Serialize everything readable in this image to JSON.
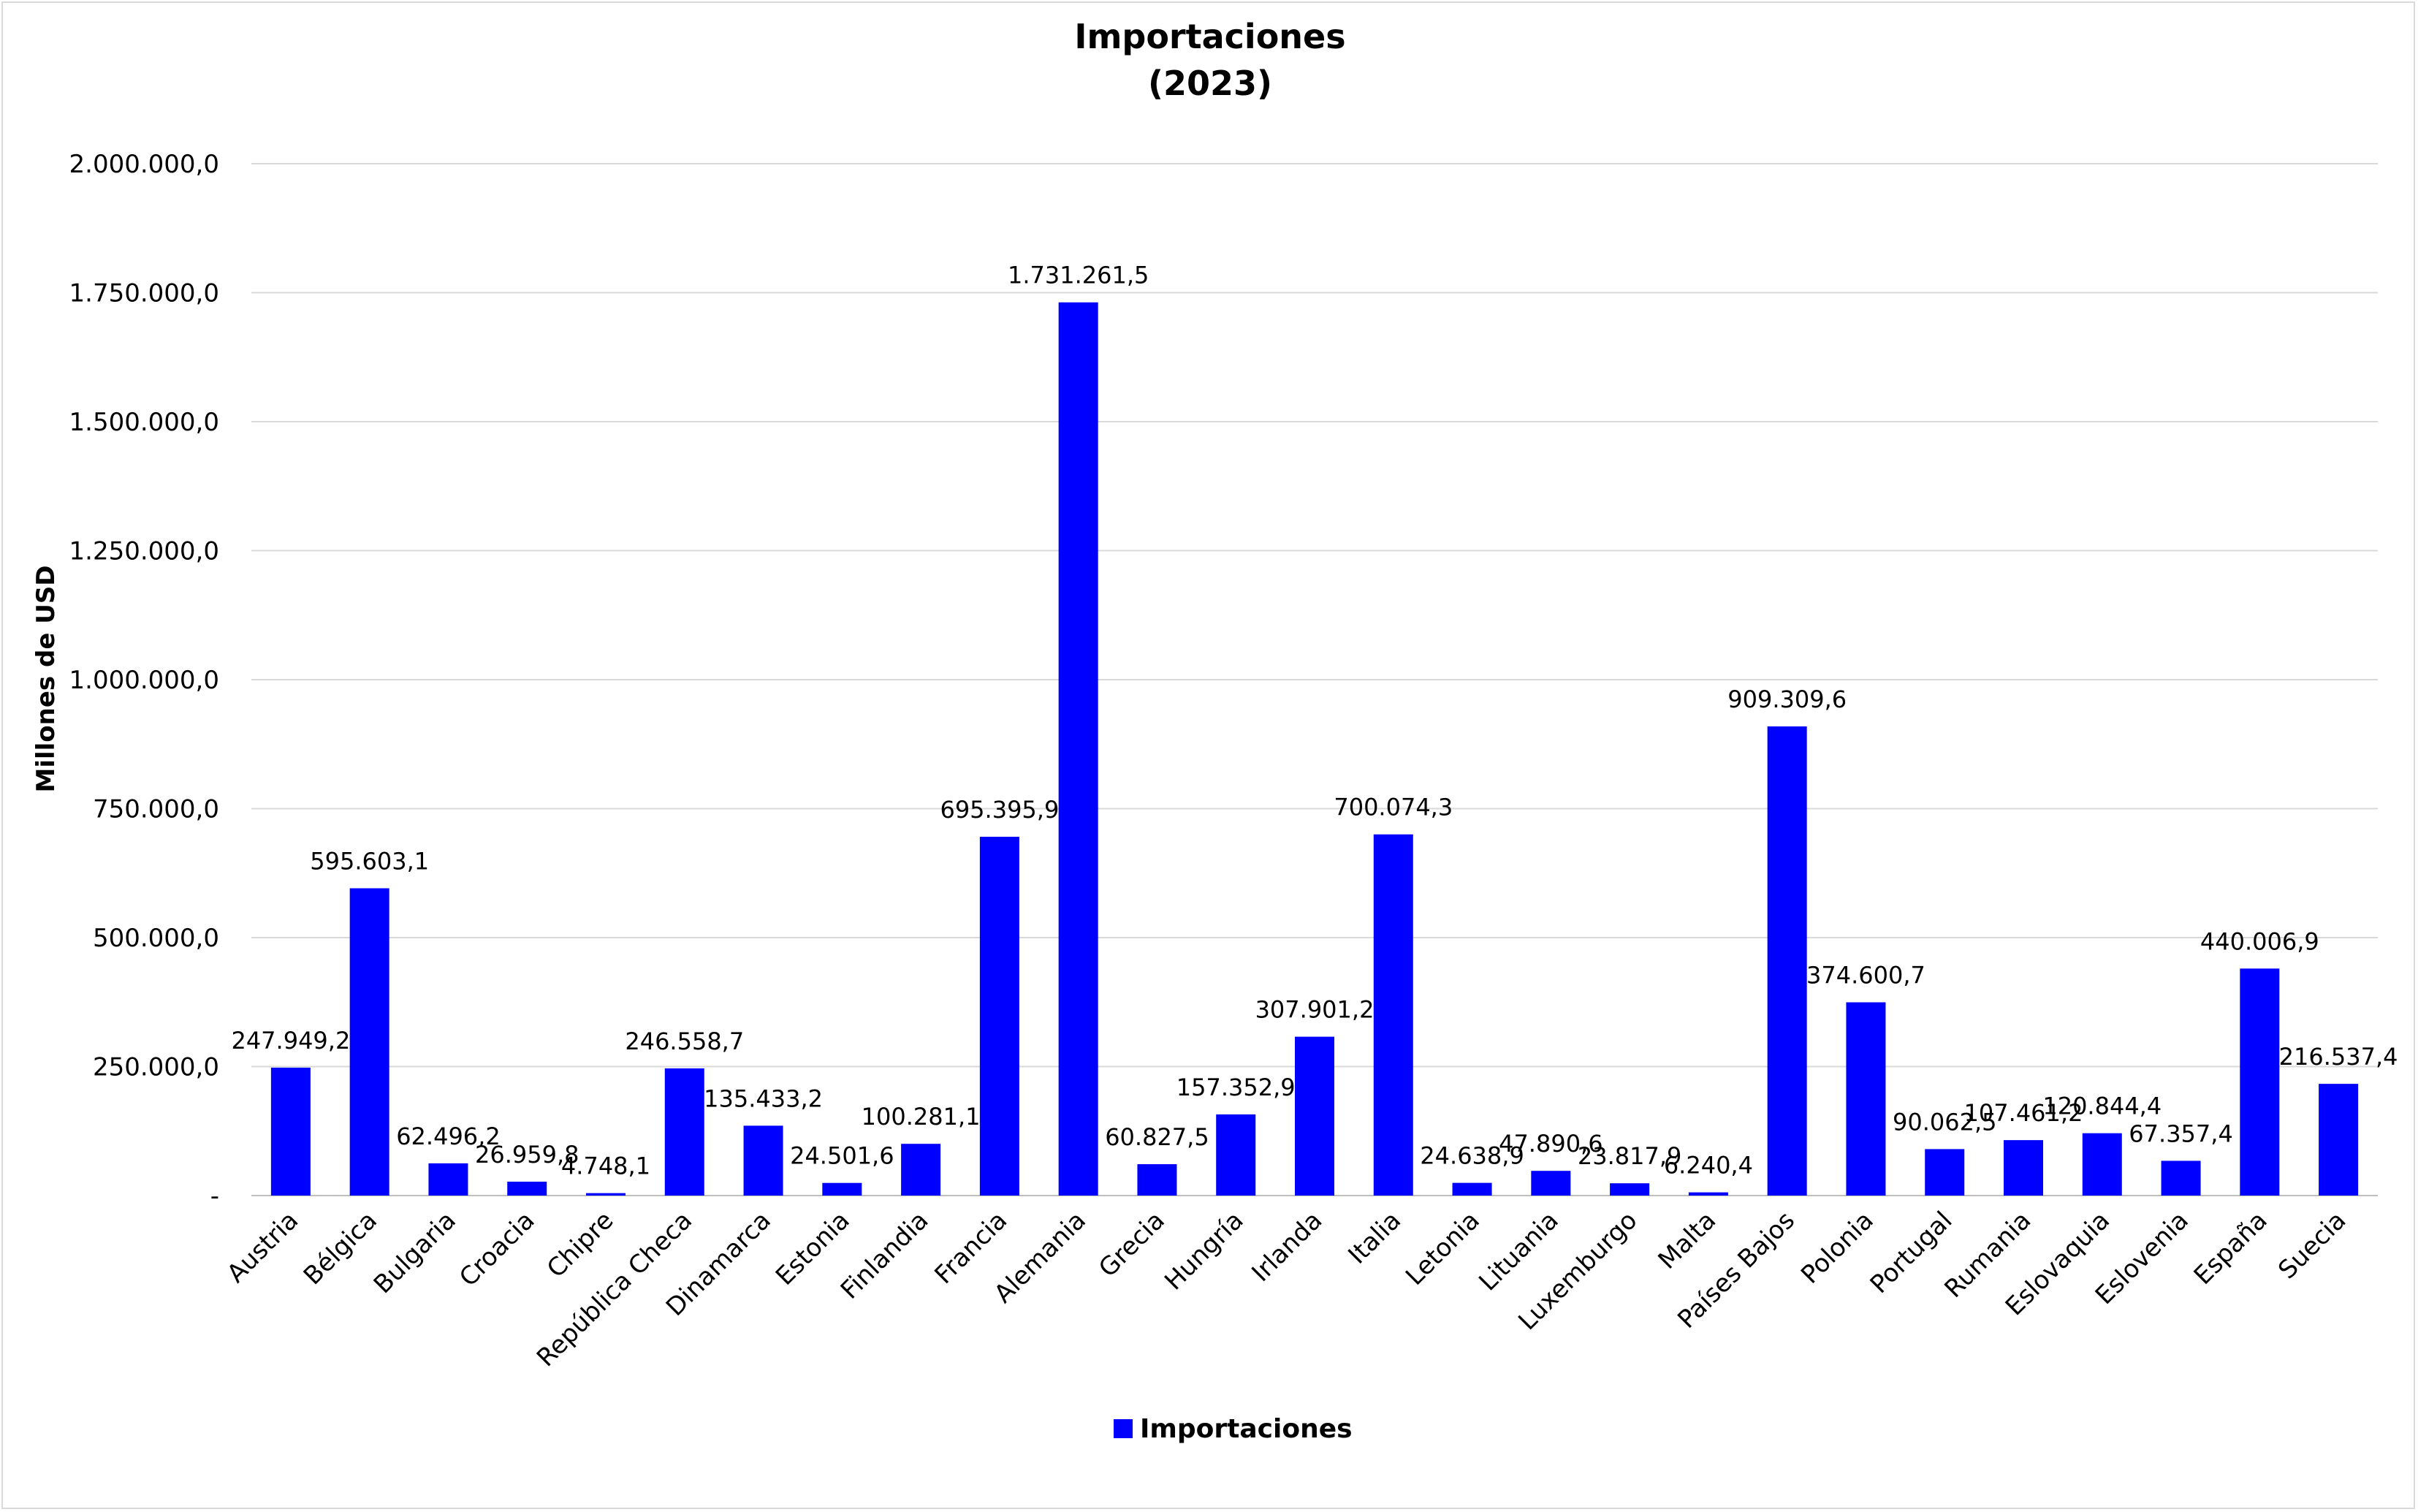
{
  "chart_data": {
    "type": "bar",
    "title": "Importaciones",
    "subtitle": "(2023)",
    "ylabel": "Millones de USD",
    "xlabel": "",
    "ylim": [
      0,
      2000000
    ],
    "yticks": [
      0,
      250000,
      500000,
      750000,
      1000000,
      1250000,
      1500000,
      1750000,
      2000000
    ],
    "ytick_labels": [
      "-",
      "250.000,0",
      "500.000,0",
      "750.000,0",
      "1.000.000,0",
      "1.250.000,0",
      "1.500.000,0",
      "1.750.000,0",
      "2.000.000,0"
    ],
    "grid": true,
    "legend_position": "bottom",
    "bar_color": "#0000ff",
    "categories": [
      "Austria",
      "Bélgica",
      "Bulgaria",
      "Croacia",
      "Chipre",
      "República Checa",
      "Dinamarca",
      "Estonia",
      "Finlandia",
      "Francia",
      "Alemania",
      "Grecia",
      "Hungría",
      "Irlanda",
      "Italia",
      "Letonia",
      "Lituania",
      "Luxemburgo",
      "Malta",
      "Países Bajos",
      "Polonia",
      "Portugal",
      "Rumania",
      "Eslovaquia",
      "Eslovenia",
      "España",
      "Suecia"
    ],
    "series": [
      {
        "name": "Importaciones",
        "values": [
          247949.2,
          595603.1,
          62496.2,
          26959.8,
          4748.1,
          246558.7,
          135433.2,
          24501.6,
          100281.1,
          695395.9,
          1731261.5,
          60827.5,
          157352.9,
          307901.2,
          700074.3,
          24638.9,
          47890.6,
          23817.9,
          6240.4,
          909309.6,
          374600.7,
          90062.5,
          107461.2,
          120844.4,
          67357.4,
          440006.9,
          216537.4
        ],
        "labels": [
          "247.949,2",
          "595.603,1",
          "62.496,2",
          "26.959,8",
          "4.748,1",
          "246.558,7",
          "135.433,2",
          "24.501,6",
          "100.281,1",
          "695.395,9",
          "1.731.261,5",
          "60.827,5",
          "157.352,9",
          "307.901,2",
          "700.074,3",
          "24.638,9",
          "47.890,6",
          "23.817,9",
          "6.240,4",
          "909.309,6",
          "374.600,7",
          "90.062,5",
          "107.461,2",
          "120.844,4",
          "67.357,4",
          "440.006,9",
          "216.537,4"
        ],
        "label_values": [
          247949.2,
          595603.1,
          62496.2,
          26959.8,
          4748.1,
          246558.7,
          135433.2,
          24501.6,
          100281.1,
          695395.9,
          1731261.5,
          60827.5,
          157352.9,
          307901.2,
          700074.3,
          24638.9,
          47890.6,
          23817.9,
          6240.4,
          909309.6,
          374600.7,
          90062.5,
          107461.2,
          120844.4,
          67357.4,
          440006.9,
          216537.4
        ]
      }
    ]
  }
}
